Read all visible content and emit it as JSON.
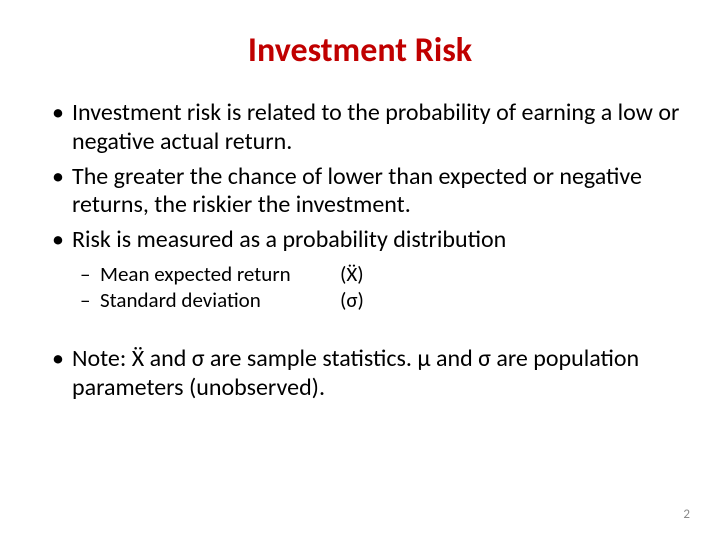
{
  "slide": {
    "title": "Investment Risk",
    "title_color": "#c00000",
    "title_fontsize": 34,
    "body_fontsize": 24,
    "sub_fontsize": 21,
    "body_color": "#000000",
    "background_color": "#ffffff",
    "page_number": "2",
    "page_number_color": "#898989",
    "bullets": [
      "Investment risk is related to the probability of earning a low or negative actual return.",
      "The greater the chance of lower than expected or negative returns, the riskier the investment.",
      "Risk is measured as a probability distribution"
    ],
    "sub_bullets": [
      {
        "label": "Mean expected return",
        "symbol": "(Ẍ)"
      },
      {
        "label": "Standard deviation",
        "symbol": " (σ)"
      }
    ],
    "note": "Note: Ẍ and σ are sample statistics. μ and σ are population parameters (unobserved)."
  }
}
